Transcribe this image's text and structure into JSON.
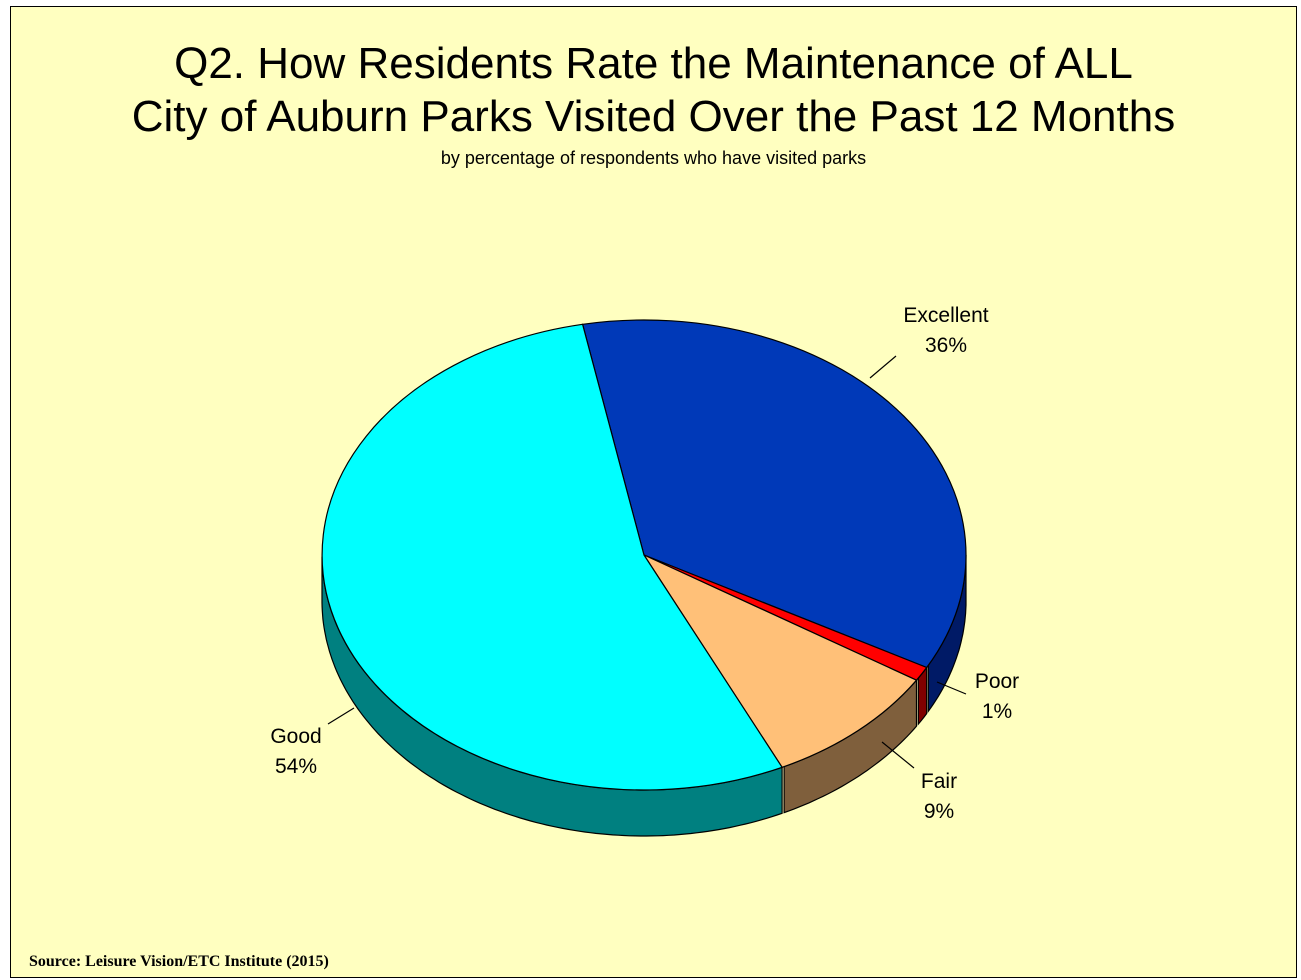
{
  "chart_data": {
    "type": "pie",
    "title_lines": [
      "Q2. How Residents Rate the Maintenance of ALL",
      "City of Auburn Parks Visited Over the Past 12 Months"
    ],
    "subtitle": "by percentage of respondents who have visited parks",
    "slices": [
      {
        "label": "Excellent",
        "value": 36,
        "value_label": "36%",
        "color": "#0039b8",
        "side_color": "#001a66"
      },
      {
        "label": "Poor",
        "value": 1,
        "value_label": "1%",
        "color": "#ff0000",
        "side_color": "#800000"
      },
      {
        "label": "Fair",
        "value": 9,
        "value_label": "9%",
        "color": "#ffc078",
        "side_color": "#7f5f3c"
      },
      {
        "label": "Good",
        "value": 54,
        "value_label": "54%",
        "color": "#00ffff",
        "side_color": "#008080"
      }
    ],
    "style": "3d-pie",
    "legend": "none"
  },
  "source": "Source:  Leisure Vision/ETC Institute (2015)",
  "colors": {
    "background": "#ffffc0",
    "border": "#000000"
  }
}
